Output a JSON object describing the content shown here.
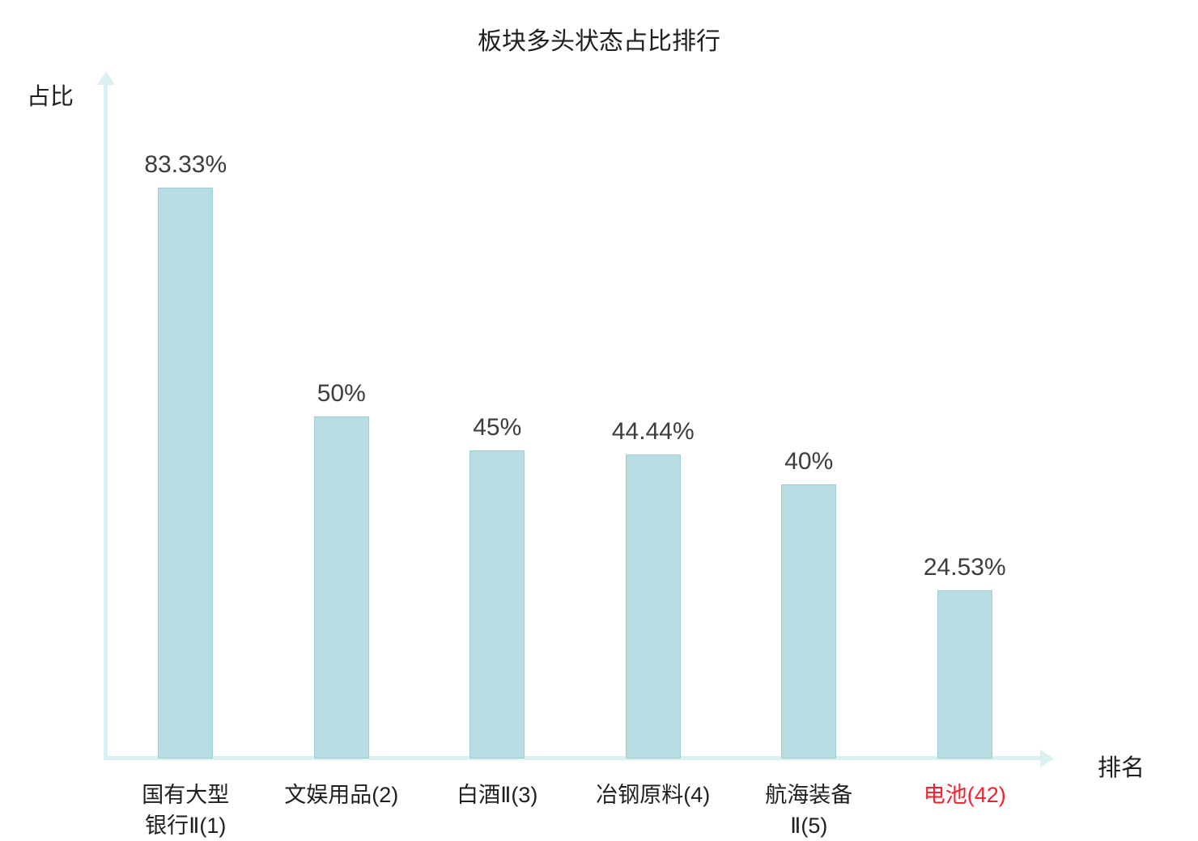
{
  "chart_data": {
    "type": "bar",
    "title": "板块多头状态占比排行",
    "xlabel": "排名",
    "ylabel": "占比",
    "categories": [
      "国有大型银行Ⅱ(1)",
      "文娱用品(2)",
      "白酒Ⅱ(3)",
      "冶钢原料(4)",
      "航海装备Ⅱ(5)",
      "电池(42)"
    ],
    "label_lines": [
      [
        "国有大型",
        "银行Ⅱ(1)"
      ],
      [
        "文娱用品(2)"
      ],
      [
        "白酒Ⅱ(3)"
      ],
      [
        "冶钢原料(4)"
      ],
      [
        "航海装备",
        "Ⅱ(5)"
      ],
      [
        "电池(42)"
      ]
    ],
    "values": [
      83.33,
      50,
      45,
      44.44,
      40,
      24.53
    ],
    "value_labels": [
      "83.33%",
      "50%",
      "45%",
      "44.44%",
      "40%",
      "24.53%"
    ],
    "ylim": [
      0,
      100
    ],
    "grid": false,
    "legend": "none",
    "highlight_index": 5,
    "highlight_color": "#f5222d",
    "bar_color": "#b7dde2",
    "bar_border_color": "#9ecfd6",
    "axis_color": "#daf0f2",
    "value_label_color": "#3d3d3d",
    "category_label_color": "#1f1f1f",
    "title_color": "#1f1f1f"
  }
}
